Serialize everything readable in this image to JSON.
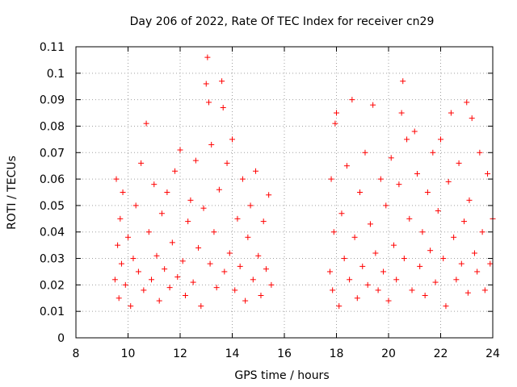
{
  "chart_data": {
    "type": "scatter",
    "title": "Day 206 of 2022, Rate Of TEC Index for receiver cn29",
    "xlabel": "GPS time / hours",
    "ylabel": "ROTI / TECUs",
    "xlim": [
      8,
      24
    ],
    "ylim": [
      0,
      0.11
    ],
    "x_ticks": [
      8,
      10,
      12,
      14,
      16,
      18,
      20,
      22,
      24
    ],
    "x_tick_labels": [
      "8",
      "10",
      "12",
      "14",
      "16",
      "18",
      "20",
      "22",
      "24"
    ],
    "y_ticks": [
      0,
      0.01,
      0.02,
      0.03,
      0.04,
      0.05,
      0.06,
      0.07,
      0.08,
      0.09,
      0.1,
      0.11
    ],
    "y_tick_labels": [
      "0",
      "0.01",
      "0.02",
      "0.03",
      "0.04",
      "0.05",
      "0.06",
      "0.07",
      "0.08",
      "0.09",
      "0.1",
      "0.11"
    ],
    "grid": true,
    "marker": "plus",
    "color": "#ff0000",
    "series": [
      {
        "name": "ROTI",
        "x": [
          9.5,
          9.55,
          9.6,
          9.65,
          9.7,
          9.75,
          9.8,
          9.9,
          10.0,
          10.1,
          10.2,
          10.3,
          10.4,
          10.5,
          10.6,
          10.7,
          10.8,
          10.9,
          11.0,
          11.1,
          11.2,
          11.3,
          11.4,
          11.5,
          11.6,
          11.7,
          11.8,
          11.9,
          12.0,
          12.1,
          12.2,
          12.3,
          12.4,
          12.5,
          12.6,
          12.7,
          12.8,
          12.9,
          13.0,
          13.05,
          13.1,
          13.15,
          13.2,
          13.3,
          13.4,
          13.5,
          13.6,
          13.65,
          13.7,
          13.8,
          13.9,
          14.0,
          14.1,
          14.2,
          14.3,
          14.4,
          14.5,
          14.6,
          14.7,
          14.8,
          14.9,
          15.0,
          15.1,
          15.2,
          15.3,
          15.4,
          15.5,
          17.75,
          17.8,
          17.85,
          17.9,
          17.95,
          18.0,
          18.1,
          18.2,
          18.3,
          18.4,
          18.5,
          18.6,
          18.7,
          18.8,
          18.9,
          19.0,
          19.1,
          19.2,
          19.3,
          19.4,
          19.5,
          19.6,
          19.7,
          19.8,
          19.9,
          20.0,
          20.1,
          20.2,
          20.3,
          20.4,
          20.5,
          20.55,
          20.6,
          20.7,
          20.8,
          20.9,
          21.0,
          21.1,
          21.2,
          21.3,
          21.4,
          21.5,
          21.6,
          21.7,
          21.8,
          21.9,
          22.0,
          22.1,
          22.2,
          22.3,
          22.4,
          22.5,
          22.6,
          22.7,
          22.8,
          22.9,
          23.0,
          23.05,
          23.1,
          23.2,
          23.3,
          23.4,
          23.5,
          23.6,
          23.7,
          23.8,
          23.9,
          24.0
        ],
        "y": [
          0.022,
          0.06,
          0.035,
          0.015,
          0.045,
          0.028,
          0.055,
          0.02,
          0.038,
          0.012,
          0.03,
          0.05,
          0.025,
          0.066,
          0.018,
          0.081,
          0.04,
          0.022,
          0.058,
          0.031,
          0.014,
          0.047,
          0.026,
          0.055,
          0.019,
          0.036,
          0.063,
          0.023,
          0.071,
          0.029,
          0.016,
          0.044,
          0.052,
          0.021,
          0.067,
          0.034,
          0.012,
          0.049,
          0.096,
          0.106,
          0.089,
          0.028,
          0.073,
          0.04,
          0.019,
          0.056,
          0.097,
          0.087,
          0.025,
          0.066,
          0.032,
          0.075,
          0.018,
          0.045,
          0.027,
          0.06,
          0.014,
          0.038,
          0.05,
          0.022,
          0.063,
          0.031,
          0.016,
          0.044,
          0.026,
          0.054,
          0.02,
          0.025,
          0.06,
          0.018,
          0.04,
          0.081,
          0.085,
          0.012,
          0.047,
          0.03,
          0.065,
          0.022,
          0.09,
          0.038,
          0.015,
          0.055,
          0.027,
          0.07,
          0.02,
          0.043,
          0.088,
          0.032,
          0.018,
          0.06,
          0.025,
          0.05,
          0.014,
          0.068,
          0.035,
          0.022,
          0.058,
          0.085,
          0.097,
          0.03,
          0.075,
          0.045,
          0.018,
          0.078,
          0.062,
          0.027,
          0.04,
          0.016,
          0.055,
          0.033,
          0.07,
          0.021,
          0.048,
          0.075,
          0.03,
          0.012,
          0.059,
          0.085,
          0.038,
          0.022,
          0.066,
          0.028,
          0.044,
          0.089,
          0.017,
          0.052,
          0.083,
          0.032,
          0.025,
          0.07,
          0.04,
          0.018,
          0.062,
          0.028,
          0.045
        ]
      }
    ]
  }
}
